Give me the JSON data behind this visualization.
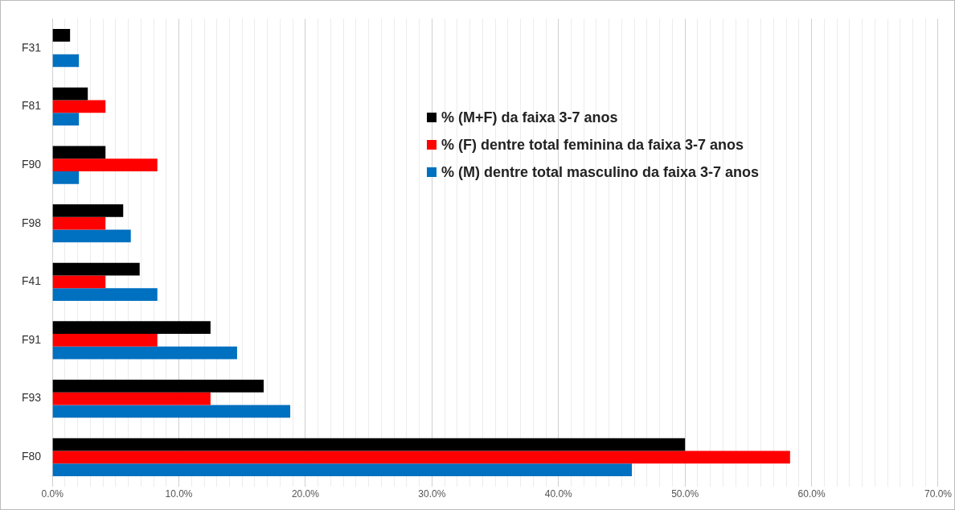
{
  "chart_data": {
    "type": "bar",
    "orientation": "horizontal",
    "categories": [
      "F31",
      "F81",
      "F90",
      "F98",
      "F41",
      "F91",
      "F93",
      "F80"
    ],
    "series": [
      {
        "name": "% (M+F) da faixa 3-7 anos",
        "color": "#000000",
        "values": [
          1.4,
          2.8,
          4.2,
          5.6,
          6.9,
          12.5,
          16.7,
          50.0
        ]
      },
      {
        "name": "% (F) dentre total feminina da faixa 3-7 anos",
        "color": "#ff0000",
        "values": [
          0,
          4.2,
          8.3,
          4.2,
          4.2,
          8.3,
          12.5,
          58.3
        ]
      },
      {
        "name": "% (M) dentre total masculino da faixa 3-7 anos",
        "color": "#0070c0",
        "values": [
          2.1,
          2.1,
          2.1,
          6.2,
          8.3,
          14.6,
          18.8,
          45.8
        ]
      }
    ],
    "xlim": [
      0,
      70
    ],
    "xticks": [
      {
        "value": 0,
        "label": "0.0%"
      },
      {
        "value": 1,
        "label": null
      },
      {
        "value": 2,
        "label": null
      },
      {
        "value": 3,
        "label": null
      },
      {
        "value": 4,
        "label": null
      },
      {
        "value": 5,
        "label": null
      },
      {
        "value": 6,
        "label": null
      },
      {
        "value": 7,
        "label": null
      },
      {
        "value": 8,
        "label": null
      },
      {
        "value": 9,
        "label": null
      },
      {
        "value": 10,
        "label": "10.0%"
      },
      {
        "value": 11,
        "label": null
      },
      {
        "value": 12,
        "label": null
      },
      {
        "value": 13,
        "label": null
      },
      {
        "value": 14,
        "label": null
      },
      {
        "value": 15,
        "label": null
      },
      {
        "value": 16,
        "label": null
      },
      {
        "value": 17,
        "label": null
      },
      {
        "value": 18,
        "label": null
      },
      {
        "value": 19,
        "label": null
      },
      {
        "value": 20,
        "label": "20.0%"
      },
      {
        "value": 21,
        "label": null
      },
      {
        "value": 22,
        "label": null
      },
      {
        "value": 23,
        "label": null
      },
      {
        "value": 24,
        "label": null
      },
      {
        "value": 25,
        "label": null
      },
      {
        "value": 26,
        "label": null
      },
      {
        "value": 27,
        "label": null
      },
      {
        "value": 28,
        "label": null
      },
      {
        "value": 29,
        "label": null
      },
      {
        "value": 30,
        "label": "30.0%"
      },
      {
        "value": 31,
        "label": null
      },
      {
        "value": 32,
        "label": null
      },
      {
        "value": 33,
        "label": null
      },
      {
        "value": 34,
        "label": null
      },
      {
        "value": 35,
        "label": null
      },
      {
        "value": 36,
        "label": null
      },
      {
        "value": 37,
        "label": null
      },
      {
        "value": 38,
        "label": null
      },
      {
        "value": 39,
        "label": null
      },
      {
        "value": 40,
        "label": "40.0%"
      },
      {
        "value": 41,
        "label": null
      },
      {
        "value": 42,
        "label": null
      },
      {
        "value": 43,
        "label": null
      },
      {
        "value": 44,
        "label": null
      },
      {
        "value": 45,
        "label": null
      },
      {
        "value": 46,
        "label": null
      },
      {
        "value": 47,
        "label": null
      },
      {
        "value": 48,
        "label": null
      },
      {
        "value": 49,
        "label": null
      },
      {
        "value": 50,
        "label": "50.0%"
      },
      {
        "value": 51,
        "label": null
      },
      {
        "value": 52,
        "label": null
      },
      {
        "value": 53,
        "label": null
      },
      {
        "value": 54,
        "label": null
      },
      {
        "value": 55,
        "label": null
      },
      {
        "value": 56,
        "label": null
      },
      {
        "value": 57,
        "label": null
      },
      {
        "value": 58,
        "label": null
      },
      {
        "value": 59,
        "label": null
      },
      {
        "value": 60,
        "label": "60.0%"
      },
      {
        "value": 61,
        "label": null
      },
      {
        "value": 62,
        "label": null
      },
      {
        "value": 63,
        "label": null
      },
      {
        "value": 64,
        "label": null
      },
      {
        "value": 65,
        "label": null
      },
      {
        "value": 66,
        "label": null
      },
      {
        "value": 67,
        "label": null
      },
      {
        "value": 68,
        "label": null
      },
      {
        "value": 69,
        "label": null
      },
      {
        "value": 70,
        "label": "70.0%"
      }
    ],
    "grid": "x",
    "legend": "top right"
  }
}
